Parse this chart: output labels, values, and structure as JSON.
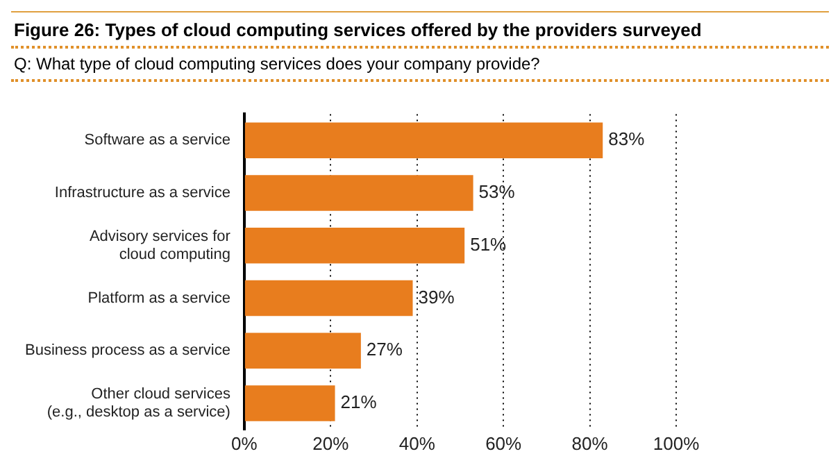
{
  "chart_data": {
    "type": "bar",
    "orientation": "horizontal",
    "title": "Figure 26: Types of cloud computing services offered by the providers surveyed",
    "subtitle": "Q: What type of cloud computing services does your company provide?",
    "categories": [
      "Software as a service",
      "Infrastructure as a service",
      "Advisory services for\ncloud computing",
      "Platform as a service",
      "Business process as a service",
      "Other cloud services\n(e.g., desktop as a service)"
    ],
    "values": [
      83,
      53,
      51,
      39,
      27,
      21
    ],
    "value_labels": [
      "83%",
      "53%",
      "51%",
      "39%",
      "27%",
      "21%"
    ],
    "color": "#e87d1e",
    "xlim": [
      0,
      100
    ],
    "xticks": [
      {
        "value": 0,
        "label": "0%"
      },
      {
        "value": 20,
        "label": "20%"
      },
      {
        "value": 40,
        "label": "40%"
      },
      {
        "value": 60,
        "label": "60%"
      },
      {
        "value": 80,
        "label": "80%"
      },
      {
        "value": 100,
        "label": "100%"
      }
    ],
    "grid": "x",
    "legend": false
  }
}
